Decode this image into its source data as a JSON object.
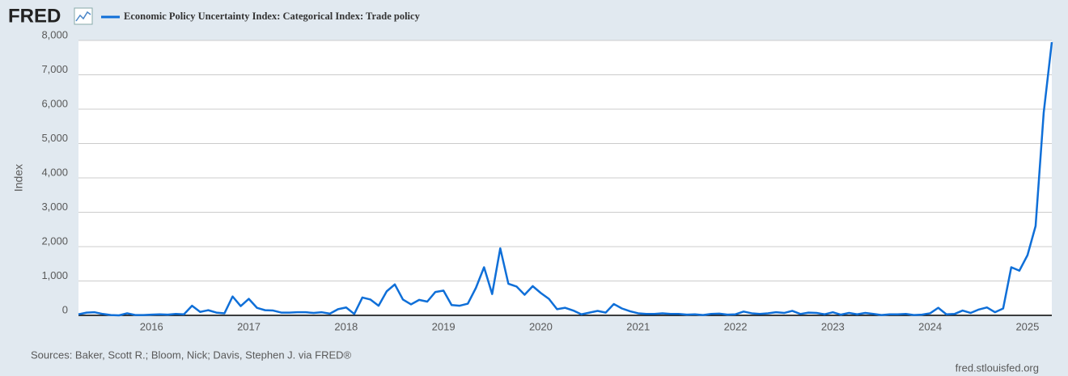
{
  "chart_data": {
    "type": "line",
    "logo": "FRED",
    "title": "Economic Policy Uncertainty Index: Categorical Index: Trade policy",
    "ylabel": "Index",
    "source": "Sources: Baker, Scott R.; Bloom, Nick; Davis, Stephen J. via FRED®",
    "credit": "fred.stlouisfed.org",
    "categories": [
      null,
      null,
      null,
      null,
      null,
      null,
      null,
      null,
      null,
      "2016",
      null,
      null,
      null,
      null,
      null,
      null,
      null,
      null,
      null,
      null,
      null,
      "2017",
      null,
      null,
      null,
      null,
      null,
      null,
      null,
      null,
      null,
      null,
      null,
      "2018",
      null,
      null,
      null,
      null,
      null,
      null,
      null,
      null,
      null,
      null,
      null,
      "2019",
      null,
      null,
      null,
      null,
      null,
      null,
      null,
      null,
      null,
      null,
      null,
      "2020",
      null,
      null,
      null,
      null,
      null,
      null,
      null,
      null,
      null,
      null,
      null,
      "2021",
      null,
      null,
      null,
      null,
      null,
      null,
      null,
      null,
      null,
      null,
      null,
      "2022",
      null,
      null,
      null,
      null,
      null,
      null,
      null,
      null,
      null,
      null,
      null,
      "2023",
      null,
      null,
      null,
      null,
      null,
      null,
      null,
      null,
      null,
      null,
      null,
      "2024",
      null,
      null,
      null,
      null,
      null,
      null,
      null,
      null,
      null,
      null,
      null,
      "2025",
      null,
      null,
      null
    ],
    "series": [
      {
        "name": "Economic Policy Uncertainty Index: Categorical Index: Trade policy",
        "color": "#0f6fd8",
        "values": [
          30,
          80,
          90,
          40,
          10,
          0,
          60,
          10,
          10,
          20,
          30,
          20,
          40,
          30,
          280,
          100,
          150,
          80,
          60,
          550,
          270,
          480,
          220,
          150,
          140,
          80,
          80,
          90,
          90,
          70,
          90,
          50,
          180,
          230,
          40,
          520,
          460,
          280,
          700,
          900,
          460,
          320,
          450,
          400,
          680,
          720,
          300,
          280,
          340,
          800,
          1400,
          620,
          1950,
          920,
          840,
          600,
          850,
          650,
          480,
          180,
          220,
          140,
          30,
          80,
          130,
          80,
          330,
          200,
          120,
          60,
          40,
          40,
          60,
          40,
          40,
          20,
          30,
          10,
          40,
          50,
          20,
          30,
          110,
          60,
          40,
          60,
          90,
          70,
          130,
          40,
          80,
          70,
          30,
          90,
          20,
          70,
          30,
          70,
          40,
          10,
          30,
          30,
          40,
          10,
          20,
          60,
          220,
          30,
          40,
          140,
          70,
          170,
          230,
          90,
          200,
          1400,
          1300,
          1750,
          2600,
          5900,
          7950
        ]
      }
    ],
    "ylim": [
      0,
      8000
    ],
    "yticks": [
      0,
      {
        "value": 1000,
        "label": "1,000"
      },
      {
        "value": 2000,
        "label": "2,000"
      },
      {
        "value": 3000,
        "label": "3,000"
      },
      {
        "value": 4000,
        "label": "4,000"
      },
      {
        "value": 5000,
        "label": "5,000"
      },
      {
        "value": 6000,
        "label": "6,000"
      },
      {
        "value": 7000,
        "label": "7,000"
      },
      {
        "value": 8000,
        "label": "8,000"
      }
    ],
    "grid": true
  }
}
